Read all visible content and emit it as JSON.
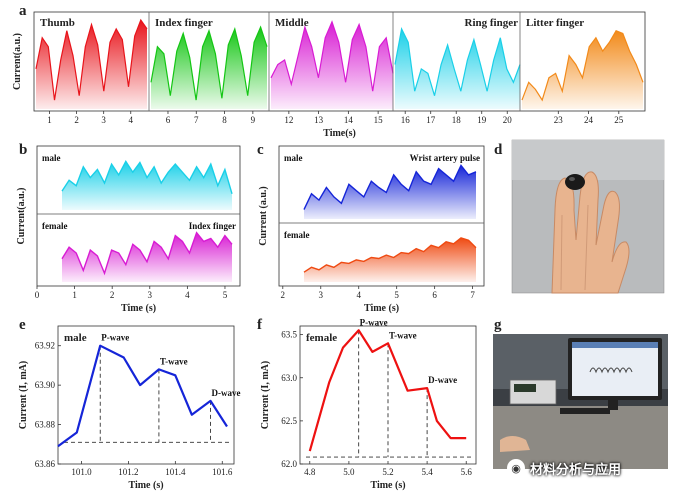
{
  "panels": {
    "a": {
      "label": "a"
    },
    "b": {
      "label": "b"
    },
    "c": {
      "label": "c"
    },
    "d": {
      "label": "d"
    },
    "e": {
      "label": "e"
    },
    "f": {
      "label": "f"
    },
    "g": {
      "label": "g"
    }
  },
  "colors": {
    "thumb": "#e8141b",
    "index": "#14c614",
    "middle": "#d81cd3",
    "ring": "#1ad0e8",
    "little": "#f28a1a",
    "blue": "#1525d8",
    "orange": "#ef4a12",
    "line_red": "#ee1111"
  },
  "icons": {
    "watermark": "wechat-icon"
  },
  "watermark_text": "材料分析与应用",
  "chart_data": [
    {
      "id": "a",
      "type": "area",
      "ylabel": "Current(a.u.)",
      "xlabel": "Time(s)",
      "segments": [
        {
          "name": "Thumb",
          "color": "#e8141b",
          "xrange": [
            0.5,
            4.6
          ],
          "ticks": [
            1,
            2,
            3,
            4
          ],
          "values": [
            0.45,
            0.8,
            0.7,
            0.1,
            0.55,
            0.88,
            0.6,
            0.15,
            0.7,
            0.95,
            0.72,
            0.2,
            0.75,
            0.9,
            0.78,
            0.25,
            0.82,
            1.0,
            0.9
          ]
        },
        {
          "name": "Index finger",
          "color": "#14c614",
          "xrange": [
            5.4,
            9.5
          ],
          "ticks": [
            6,
            7,
            8,
            9
          ],
          "values": [
            0.3,
            0.7,
            0.62,
            0.15,
            0.65,
            0.85,
            0.58,
            0.1,
            0.7,
            0.88,
            0.62,
            0.12,
            0.72,
            0.9,
            0.6,
            0.15,
            0.75,
            0.92,
            0.7
          ]
        },
        {
          "name": "Middle",
          "color": "#d81cd3",
          "xrange": [
            11.4,
            15.5
          ],
          "ticks": [
            12,
            13,
            14,
            15
          ],
          "values": [
            0.35,
            0.5,
            0.55,
            0.28,
            0.6,
            0.92,
            0.7,
            0.35,
            0.8,
            0.98,
            0.75,
            0.3,
            0.78,
            0.95,
            0.7,
            0.2,
            0.7,
            0.8,
            0.4
          ]
        },
        {
          "name": "Ring finger",
          "color": "#1ad0e8",
          "xrange": [
            15.6,
            20.5
          ],
          "ticks": [
            16,
            17,
            18,
            19,
            20
          ],
          "values": [
            0.5,
            0.9,
            0.75,
            0.2,
            0.45,
            0.4,
            0.15,
            0.5,
            0.72,
            0.45,
            0.2,
            0.55,
            0.78,
            0.5,
            0.2,
            0.55,
            0.8,
            0.45,
            0.3,
            0.5
          ]
        },
        {
          "name": "Litter finger",
          "color": "#f28a1a",
          "xrange": [
            21.8,
            25.8
          ],
          "ticks": [
            23,
            24,
            25
          ],
          "values": [
            0.1,
            0.3,
            0.22,
            0.1,
            0.35,
            0.4,
            0.2,
            0.6,
            0.5,
            0.35,
            0.7,
            0.8,
            0.65,
            0.75,
            0.88,
            0.85,
            0.65,
            0.5,
            0.3
          ]
        }
      ]
    },
    {
      "id": "b",
      "type": "area",
      "ylabel": "Current(a.u.)",
      "xlabel": "Time (s)",
      "xticks": [
        0,
        1,
        2,
        3,
        4,
        5
      ],
      "xrange": [
        0,
        5.4
      ],
      "series": [
        {
          "name": "male",
          "color": "#1ad0e8",
          "values": [
            0.35,
            0.55,
            0.45,
            0.8,
            0.6,
            0.75,
            0.5,
            0.85,
            0.65,
            0.9,
            0.7,
            0.88,
            0.6,
            0.8,
            0.5,
            0.7,
            0.85,
            0.7,
            0.55,
            0.8,
            0.6,
            0.85,
            0.45,
            0.75,
            0.3
          ]
        },
        {
          "name": "female",
          "color": "#d81cd3",
          "note": "Index finger",
          "values": [
            0.4,
            0.6,
            0.5,
            0.2,
            0.55,
            0.45,
            0.15,
            0.55,
            0.5,
            0.3,
            0.65,
            0.55,
            0.35,
            0.7,
            0.6,
            0.4,
            0.8,
            0.7,
            0.5,
            0.85,
            0.7,
            0.75,
            0.6,
            0.8,
            0.65
          ]
        }
      ]
    },
    {
      "id": "c",
      "type": "area",
      "ylabel": "Current (a.u.)",
      "xlabel": "Time (s)",
      "xticks": [
        2,
        3,
        4,
        5,
        6,
        7
      ],
      "xrange": [
        1.9,
        7.3
      ],
      "series": [
        {
          "name": "male",
          "color": "#1525d8",
          "note": "Wrist artery pulse",
          "values": [
            0.15,
            0.4,
            0.3,
            0.5,
            0.35,
            0.25,
            0.55,
            0.45,
            0.35,
            0.6,
            0.5,
            0.42,
            0.7,
            0.55,
            0.45,
            0.75,
            0.6,
            0.55,
            0.8,
            0.7,
            0.6,
            0.85,
            0.7,
            0.75
          ]
        },
        {
          "name": "female",
          "color": "#ef4a12",
          "values": [
            0.2,
            0.3,
            0.25,
            0.35,
            0.3,
            0.4,
            0.38,
            0.45,
            0.42,
            0.5,
            0.48,
            0.55,
            0.5,
            0.6,
            0.58,
            0.68,
            0.62,
            0.75,
            0.7,
            0.82,
            0.78,
            0.9,
            0.85,
            0.7
          ]
        }
      ]
    },
    {
      "id": "e",
      "type": "line",
      "series_name": "male",
      "color": "#1525d8",
      "xlabel": "Time (s)",
      "ylabel": "Current (I, mA)",
      "xlim": [
        100.9,
        101.65
      ],
      "ylim": [
        63.86,
        63.93
      ],
      "xticks": [
        "101.0",
        "101.2",
        "101.4",
        "101.6"
      ],
      "yticks": [
        "63.86",
        "63.88",
        "63.90",
        "63.92"
      ],
      "x": [
        100.9,
        100.98,
        101.08,
        101.18,
        101.25,
        101.33,
        101.4,
        101.47,
        101.55,
        101.62
      ],
      "y": [
        63.869,
        63.876,
        63.92,
        63.914,
        63.9,
        63.908,
        63.905,
        63.885,
        63.892,
        63.879
      ],
      "baseline": 63.871,
      "annotations": [
        {
          "text": "P-wave",
          "x": 101.08
        },
        {
          "text": "T-wave",
          "x": 101.33
        },
        {
          "text": "D-wave",
          "x": 101.55
        }
      ]
    },
    {
      "id": "f",
      "type": "line",
      "series_name": "female",
      "color": "#ee1111",
      "xlabel": "Time (s)",
      "ylabel": "Current (I, mA)",
      "xlim": [
        4.75,
        5.65
      ],
      "ylim": [
        62.0,
        63.6
      ],
      "xticks": [
        "4.8",
        "5.0",
        "5.2",
        "5.4",
        "5.6"
      ],
      "yticks": [
        "62.0",
        "62.5",
        "63.0",
        "63.5"
      ],
      "x": [
        4.8,
        4.9,
        4.97,
        5.05,
        5.12,
        5.2,
        5.3,
        5.4,
        5.45,
        5.52,
        5.6
      ],
      "y": [
        62.15,
        62.95,
        63.35,
        63.55,
        63.3,
        63.4,
        62.85,
        62.88,
        62.5,
        62.3,
        62.3
      ],
      "baseline": 62.08,
      "annotations": [
        {
          "text": "P-wave",
          "x": 5.05
        },
        {
          "text": "T-wave",
          "x": 5.2
        },
        {
          "text": "D-wave",
          "x": 5.4
        }
      ]
    }
  ]
}
